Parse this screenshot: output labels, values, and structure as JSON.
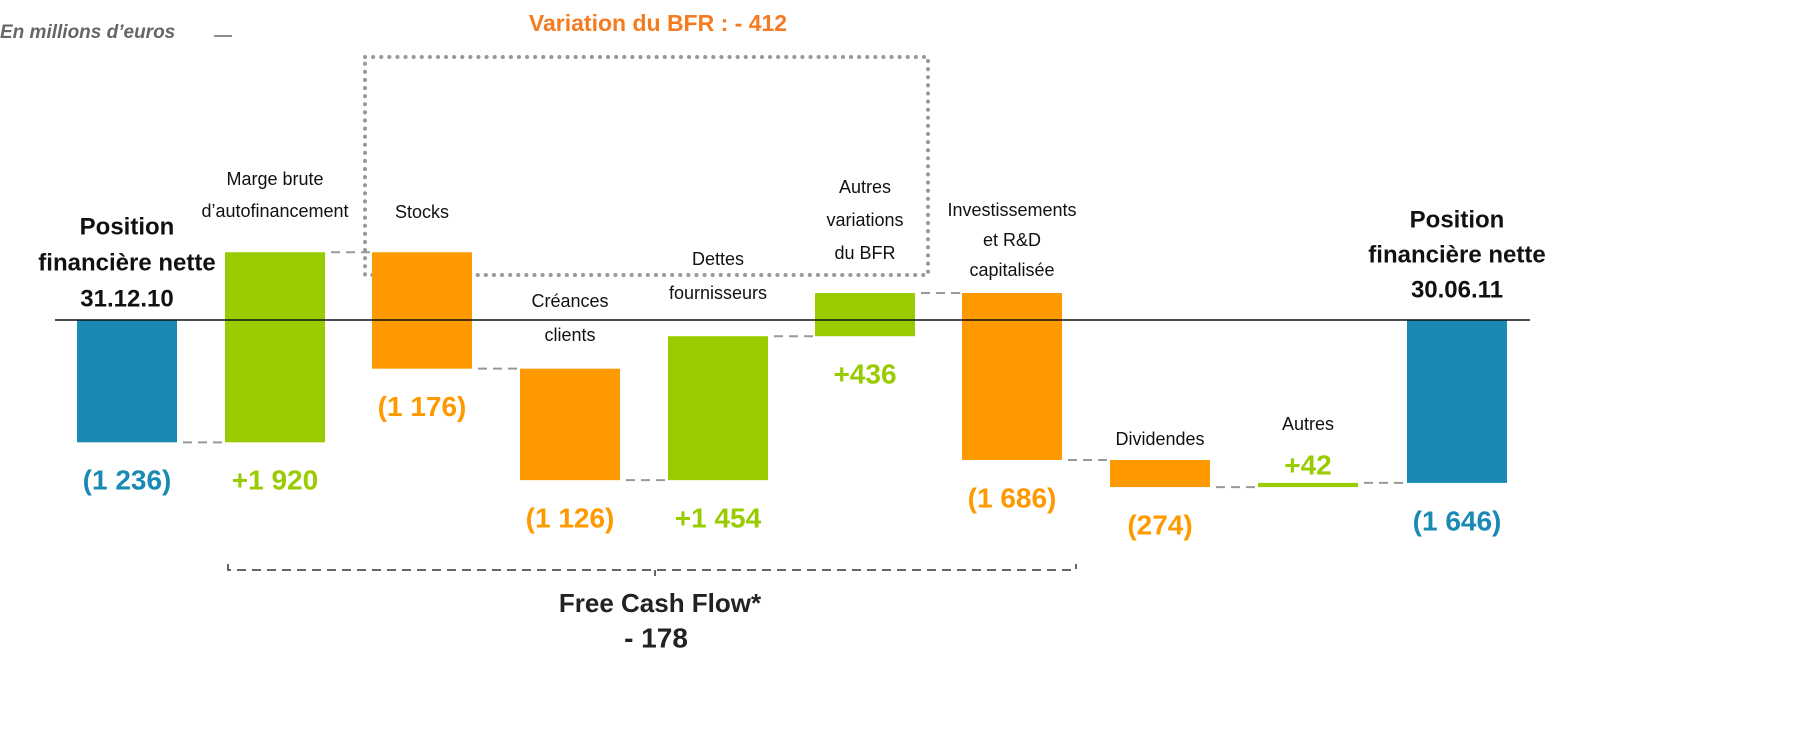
{
  "chart_data": {
    "type": "waterfall",
    "subtitle": "En millions d’euros",
    "annotations": {
      "bfr": "Variation du BFR : - 412",
      "fcf": "Free Cash Flow*",
      "fcf_value": "- 178"
    },
    "categories": [
      [
        "Position",
        "financière nette",
        "31.12.10"
      ],
      [
        "Marge brute",
        "d’autofinancement"
      ],
      [
        "Stocks"
      ],
      [
        "Créances",
        "clients"
      ],
      [
        "Dettes",
        "fournisseurs"
      ],
      [
        "Autres",
        "variations",
        "du BFR"
      ],
      [
        "Investissements",
        "et R&D",
        "capitalisée"
      ],
      [
        "Dividendes"
      ],
      [
        "Autres"
      ],
      [
        "Position",
        "financière nette",
        "30.06.11"
      ]
    ],
    "values": [
      -1236,
      1920,
      -1176,
      -1126,
      1454,
      436,
      -1686,
      -274,
      42,
      -1646
    ],
    "value_labels": [
      "(1 236)",
      "+1 920",
      "(1 176)",
      "(1 126)",
      "+1 454",
      "+436",
      "(1 686)",
      "(274)",
      "+42",
      "(1 646)"
    ],
    "colors": [
      "#1a8ab5",
      "#99cc00",
      "#ff9900",
      "#ff9900",
      "#99cc00",
      "#99cc00",
      "#ff9900",
      "#ff9900",
      "#99cc00",
      "#1a8ab5"
    ],
    "totals": [
      0,
      9
    ],
    "ylim": [
      -4263,
      3232
    ]
  }
}
